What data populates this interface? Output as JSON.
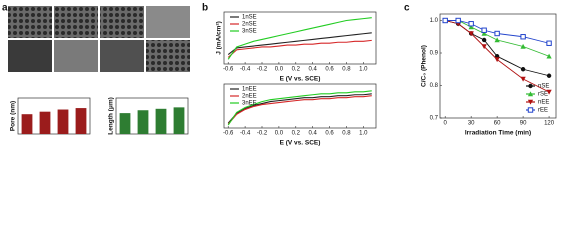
{
  "panel_labels": [
    "a",
    "b",
    "c"
  ],
  "chart_data": [
    {
      "type": "bar",
      "y_label": "Pore (nm)",
      "categories": [
        null,
        null,
        null,
        null
      ],
      "values": [
        55,
        62,
        68,
        72
      ],
      "color": "#9b1c1c",
      "ylim": [
        0,
        100
      ]
    },
    {
      "type": "bar",
      "y_label": "Length (μm)",
      "categories": [
        null,
        null,
        null,
        null
      ],
      "values": [
        58,
        66,
        70,
        74
      ],
      "color": "#2e7d32",
      "ylim": [
        0,
        100
      ]
    },
    {
      "type": "line",
      "y_label": "J (mA/cm²)",
      "x_label": "E (V vs. SCE)",
      "legend": "upper left",
      "x": [
        -0.6,
        -0.5,
        -0.4,
        -0.3,
        -0.2,
        -0.1,
        0.0,
        0.1,
        0.2,
        0.3,
        0.4,
        0.5,
        0.6,
        0.7,
        0.8,
        0.9,
        1.0,
        1.1
      ],
      "series": [
        {
          "name": "1nSE",
          "color": "#222222",
          "values": [
            -0.05,
            0.02,
            0.03,
            0.04,
            0.05,
            0.06,
            0.07,
            0.08,
            0.09,
            0.1,
            0.11,
            0.12,
            0.13,
            0.14,
            0.15,
            0.16,
            0.17,
            0.18
          ]
        },
        {
          "name": "2nSE",
          "color": "#d62728",
          "values": [
            -0.08,
            0.0,
            0.01,
            0.02,
            0.03,
            0.03,
            0.04,
            0.05,
            0.05,
            0.06,
            0.06,
            0.07,
            0.07,
            0.08,
            0.08,
            0.09,
            0.09,
            0.1
          ]
        },
        {
          "name": "3nSE",
          "color": "#22cc22",
          "values": [
            -0.1,
            0.03,
            0.06,
            0.09,
            0.11,
            0.13,
            0.15,
            0.17,
            0.19,
            0.21,
            0.23,
            0.25,
            0.27,
            0.29,
            0.31,
            0.32,
            0.33,
            0.34
          ]
        }
      ],
      "xlim": [
        -0.65,
        1.15
      ],
      "ylim": [
        -0.15,
        0.4
      ],
      "xticks": [
        -0.6,
        -0.4,
        -0.2,
        {
          "value": 0,
          "label": "0.0"
        },
        0.2,
        0.4,
        0.6,
        0.8,
        {
          "value": 1,
          "label": "1.0"
        }
      ]
    },
    {
      "type": "line",
      "x_label": "E (V vs. SCE)",
      "legend": "upper left",
      "x": [
        -0.6,
        -0.5,
        -0.4,
        -0.3,
        -0.2,
        -0.1,
        0.0,
        0.1,
        0.2,
        0.3,
        0.4,
        0.5,
        0.6,
        0.7,
        0.8,
        0.9,
        1.0,
        1.1
      ],
      "series": [
        {
          "name": "1nEE",
          "color": "#222222",
          "values": [
            -0.1,
            0.0,
            0.05,
            0.08,
            0.1,
            0.12,
            0.13,
            0.14,
            0.15,
            0.16,
            0.16,
            0.17,
            0.17,
            0.18,
            0.18,
            0.19,
            0.19,
            0.2
          ]
        },
        {
          "name": "2nEE",
          "color": "#d62728",
          "values": [
            -0.11,
            -0.01,
            0.04,
            0.07,
            0.09,
            0.1,
            0.11,
            0.12,
            0.13,
            0.14,
            0.14,
            0.15,
            0.15,
            0.16,
            0.16,
            0.17,
            0.17,
            0.18
          ]
        },
        {
          "name": "3nEE",
          "color": "#22cc22",
          "values": [
            -0.12,
            0.01,
            0.06,
            0.09,
            0.12,
            0.14,
            0.15,
            0.16,
            0.17,
            0.18,
            0.19,
            0.2,
            0.2,
            0.21,
            0.21,
            0.22,
            0.22,
            0.23
          ]
        }
      ],
      "xlim": [
        -0.65,
        1.15
      ],
      "ylim": [
        -0.15,
        0.3
      ],
      "xticks": [
        -0.6,
        -0.4,
        -0.2,
        {
          "value": 0,
          "label": "0.0"
        },
        0.2,
        0.4,
        0.6,
        0.8,
        {
          "value": 1,
          "label": "1.0"
        }
      ]
    },
    {
      "type": "line",
      "y_label": "C/C₀ (Phenol)",
      "x_label": "Irradiation Time (min)",
      "legend": "lower left",
      "x": [
        0,
        15,
        30,
        45,
        60,
        90,
        120
      ],
      "series": [
        {
          "name": "nSE",
          "color": "#111111",
          "marker": "circle",
          "values": [
            1.0,
            0.99,
            0.96,
            0.94,
            0.89,
            0.85,
            0.83
          ]
        },
        {
          "name": "rSE",
          "color": "#33bb33",
          "marker": "triangle-up",
          "values": [
            1.0,
            1.0,
            0.98,
            0.96,
            0.94,
            0.92,
            0.89
          ]
        },
        {
          "name": "nEE",
          "color": "#b01010",
          "marker": "triangle-down",
          "values": [
            1.0,
            0.99,
            0.96,
            0.92,
            0.88,
            0.82,
            0.78
          ]
        },
        {
          "name": "rEE",
          "color": "#2244cc",
          "marker": "square",
          "values": [
            1.0,
            1.0,
            0.99,
            0.97,
            0.96,
            0.95,
            0.93
          ]
        }
      ],
      "xlim": [
        -6,
        128
      ],
      "ylim": [
        0.7,
        1.02
      ],
      "xticks": [
        0,
        30,
        60,
        90,
        120
      ],
      "yticks": [
        0.7,
        0.8,
        0.9,
        {
          "value": 1,
          "label": "1.0"
        }
      ]
    }
  ]
}
